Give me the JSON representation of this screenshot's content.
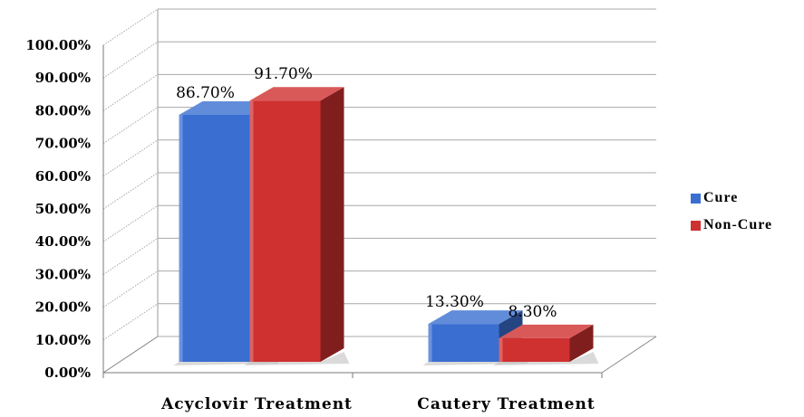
{
  "chart_data": {
    "type": "bar",
    "categories": [
      "Acyclovir Treatment",
      "Cautery Treatment"
    ],
    "series": [
      {
        "name": "Cure",
        "values": [
          86.7,
          13.3
        ],
        "labels": [
          "86.70%",
          "13.30%"
        ],
        "color": "#3a6fd1"
      },
      {
        "name": "Non-Cure",
        "values": [
          91.7,
          8.3
        ],
        "labels": [
          "91.70%",
          "8.30%"
        ],
        "color": "#cf3030"
      }
    ],
    "y_ticks": [
      "0.00%",
      "10.00%",
      "20.00%",
      "30.00%",
      "40.00%",
      "50.00%",
      "60.00%",
      "70.00%",
      "80.00%",
      "90.00%",
      "100.00%"
    ],
    "ylim": [
      0,
      100
    ],
    "grid": true,
    "legend_position": "right",
    "style": "3d-clustered-bar"
  }
}
